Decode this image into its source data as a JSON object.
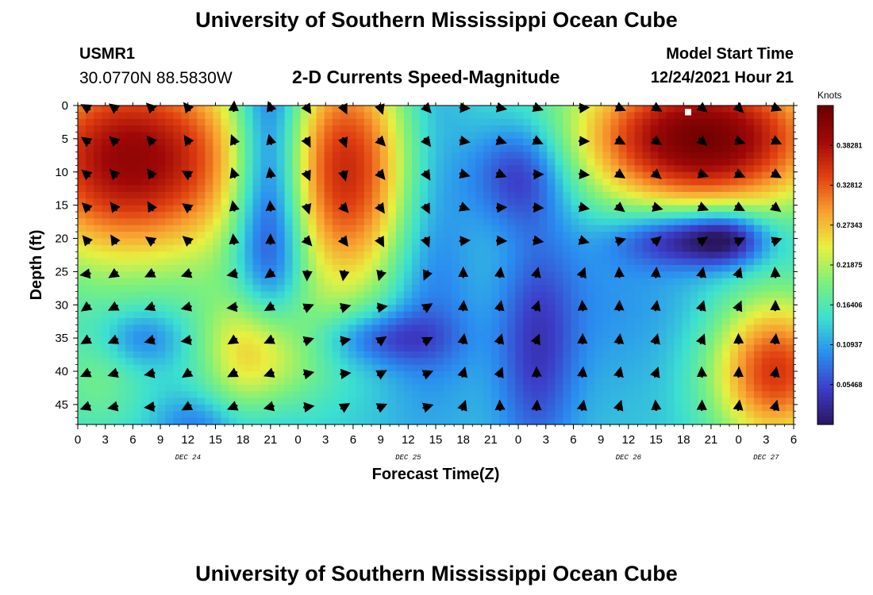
{
  "page": {
    "title_top": "University of Southern Mississippi Ocean Cube",
    "title_bottom": "University of Southern Mississippi Ocean Cube",
    "station_id": "USMR1",
    "coordinates": "30.0770N  88.5830W",
    "subtitle": "2-D Currents Speed-Magnitude",
    "model_start_label": "Model Start Time",
    "model_start_value": "12/24/2021 Hour 21"
  },
  "chart_data": {
    "type": "heatmap",
    "title": "2-D Currents Speed-Magnitude",
    "xlabel": "Forecast Time(Z)",
    "ylabel": "Depth (ft)",
    "x_tick_labels": [
      "0",
      "3",
      "6",
      "9",
      "12",
      "15",
      "18",
      "21",
      "0",
      "3",
      "6",
      "9",
      "12",
      "15",
      "18",
      "21",
      "0",
      "3",
      "6",
      "9",
      "12",
      "15",
      "18",
      "21",
      "0",
      "3",
      "6"
    ],
    "day_labels": [
      {
        "label": "DEC 24",
        "hours_from_start": 12
      },
      {
        "label": "DEC 25",
        "hours_from_start": 36
      },
      {
        "label": "DEC 26",
        "hours_from_start": 60
      },
      {
        "label": "DEC 27",
        "hours_from_start": 75
      }
    ],
    "x_range_hours": [
      0,
      78
    ],
    "y_tick_labels": [
      "0",
      "5",
      "10",
      "15",
      "20",
      "25",
      "30",
      "35",
      "40",
      "45"
    ],
    "y_range_ft": [
      0,
      48
    ],
    "colorbar": {
      "title": "Knots",
      "range": [
        0.0,
        0.4375
      ],
      "tick_labels": [
        "0.38281",
        "0.32812",
        "0.27343",
        "0.21875",
        "0.16406",
        "0.10937",
        "0.05468"
      ],
      "tick_values": [
        0.38281,
        0.32812,
        0.27343,
        0.21875,
        0.16406,
        0.10937,
        0.05468
      ]
    },
    "speed_blobs": [
      {
        "hour": 4,
        "depth": 8,
        "spread_h": 9,
        "spread_d": 12,
        "value": 0.18
      },
      {
        "hour": 9,
        "depth": 8,
        "spread_h": 9,
        "spread_d": 10,
        "value": 0.1
      },
      {
        "hour": 21,
        "depth": 12,
        "spread_h": 3,
        "spread_d": 20,
        "value": -0.2
      },
      {
        "hour": 31,
        "depth": 10,
        "spread_h": 8,
        "spread_d": 14,
        "value": 0.24
      },
      {
        "hour": 38,
        "depth": 12,
        "spread_h": 4,
        "spread_d": 18,
        "value": -0.15
      },
      {
        "hour": 48,
        "depth": 10,
        "spread_h": 4,
        "spread_d": 6,
        "value": -0.12
      },
      {
        "hour": 68,
        "depth": 5,
        "spread_h": 10,
        "spread_d": 8,
        "value": 0.3
      },
      {
        "hour": 66,
        "depth": 20,
        "spread_h": 5,
        "spread_d": 3,
        "value": -0.12
      },
      {
        "hour": 71,
        "depth": 20,
        "spread_h": 3,
        "spread_d": 3,
        "value": -0.1
      },
      {
        "hour": 20,
        "depth": 37,
        "spread_h": 4,
        "spread_d": 7,
        "value": 0.19
      },
      {
        "hour": 33,
        "depth": 35,
        "spread_h": 5,
        "spread_d": 3,
        "value": -0.08
      },
      {
        "hour": 7,
        "depth": 35,
        "spread_h": 3,
        "spread_d": 3,
        "value": -0.06
      },
      {
        "hour": 50,
        "depth": 37,
        "spread_h": 3,
        "spread_d": 12,
        "value": -0.08
      },
      {
        "hour": 76,
        "depth": 40,
        "spread_h": 5,
        "spread_d": 8,
        "value": 0.22
      },
      {
        "hour": 2,
        "depth": 42,
        "spread_h": 4,
        "spread_d": 6,
        "value": 0.05
      },
      {
        "hour": 13,
        "depth": 48,
        "spread_h": 3,
        "spread_d": 3,
        "value": -0.05
      },
      {
        "hour": 58,
        "depth": 28,
        "spread_h": 8,
        "spread_d": 10,
        "value": -0.03
      }
    ],
    "speed_base": 0.13,
    "arrow_rows_depth": [
      0,
      5,
      10,
      15,
      20,
      25,
      30,
      35,
      40,
      45
    ],
    "arrow_cols_hours": [
      1,
      4,
      8,
      12,
      17,
      21,
      25,
      29,
      33,
      38,
      42,
      46,
      50,
      55,
      59,
      63,
      68,
      72,
      76
    ],
    "arrow_direction_regions": [
      {
        "hours": [
          0,
          16
        ],
        "depths": [
          0,
          22
        ],
        "bearing_deg": 315
      },
      {
        "hours": [
          16,
          24
        ],
        "depths": [
          0,
          22
        ],
        "bearing_deg": 350
      },
      {
        "hours": [
          24,
          42
        ],
        "depths": [
          0,
          22
        ],
        "bearing_deg": 150
      },
      {
        "hours": [
          42,
          56
        ],
        "depths": [
          0,
          22
        ],
        "bearing_deg": 100
      },
      {
        "hours": [
          56,
          78
        ],
        "depths": [
          0,
          16
        ],
        "bearing_deg": 120
      },
      {
        "hours": [
          56,
          78
        ],
        "depths": [
          16,
          22
        ],
        "bearing_deg": 60
      },
      {
        "hours": [
          0,
          24
        ],
        "depths": [
          22,
          48
        ],
        "bearing_deg": 250
      },
      {
        "hours": [
          24,
          40
        ],
        "depths": [
          22,
          30
        ],
        "bearing_deg": 190
      },
      {
        "hours": [
          24,
          40
        ],
        "depths": [
          30,
          48
        ],
        "bearing_deg": 70
      },
      {
        "hours": [
          40,
          78
        ],
        "depths": [
          22,
          48
        ],
        "bearing_deg": 10
      }
    ],
    "marker": {
      "hour": 66.5,
      "depth": 1,
      "shape": "white-square"
    },
    "colors": {
      "scale": [
        "#2a1660",
        "#3c3cc8",
        "#2a8ef0",
        "#3ce0d0",
        "#7cf07c",
        "#e8f040",
        "#f8a030",
        "#e04010",
        "#a00808",
        "#6a0000"
      ]
    }
  }
}
